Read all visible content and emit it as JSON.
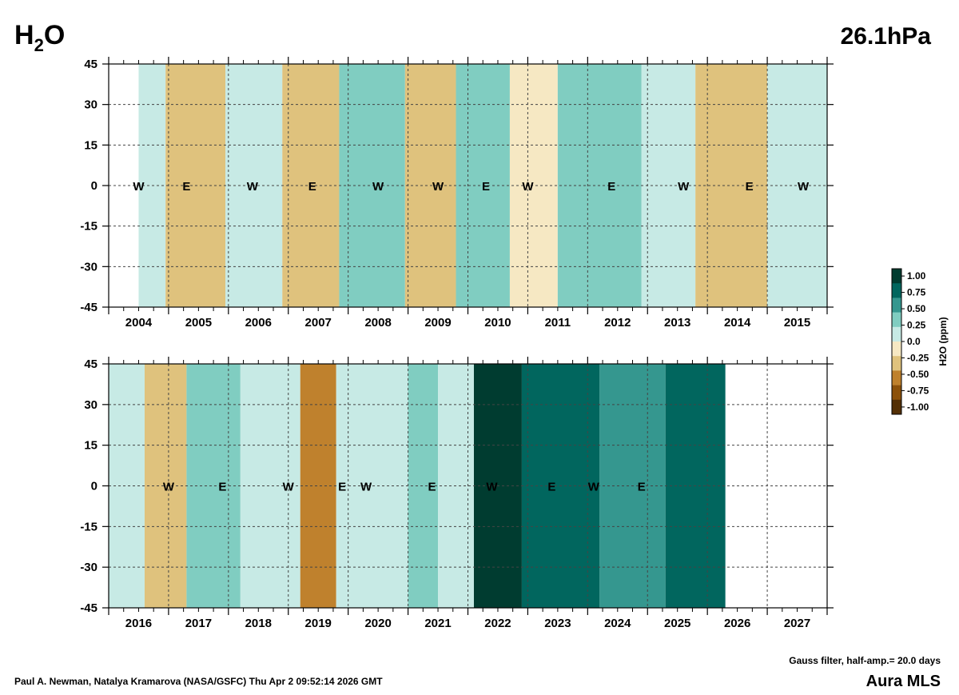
{
  "header": {
    "species": "H",
    "species_sub": "2",
    "species_tail": "O",
    "level": "26.1hPa"
  },
  "footer": {
    "credit": "Paul A. Newman, Natalya Kramarova (NASA/GSFC) Thu Apr  2 09:52:14 2026 GMT",
    "filter": "Gauss filter, half-amp.= 20.0 days",
    "instrument": "Aura MLS"
  },
  "colorbar": {
    "label": "H2O (ppm)",
    "ticks": [
      "1.00",
      "0.75",
      "0.50",
      "0.25",
      "0.0",
      "-0.25",
      "-0.50",
      "-0.75",
      "-1.00"
    ],
    "colors": [
      "#003c30",
      "#01665e",
      "#35978f",
      "#80cdc1",
      "#c7eae5",
      "#f6e8c3",
      "#dfc27d",
      "#bf812d",
      "#8c510a",
      "#543005"
    ]
  },
  "chart_data": [
    {
      "type": "heatmap",
      "title": "",
      "xlabel": "",
      "ylabel": "",
      "x_tick_labels": [
        "2004",
        "2005",
        "2006",
        "2007",
        "2008",
        "2009",
        "2010",
        "2011",
        "2012",
        "2013",
        "2014",
        "2015"
      ],
      "y_tick_labels": [
        "45",
        "30",
        "15",
        "0",
        "-15",
        "-30",
        "-45"
      ],
      "xlim": [
        2003.5,
        2015.5
      ],
      "ylim": [
        -45,
        45
      ],
      "grid": true,
      "qbo_markers": [
        {
          "year": 2004.0,
          "label": "W"
        },
        {
          "year": 2004.8,
          "label": "E"
        },
        {
          "year": 2005.9,
          "label": "W"
        },
        {
          "year": 2006.9,
          "label": "E"
        },
        {
          "year": 2008.0,
          "label": "W"
        },
        {
          "year": 2009.0,
          "label": "W"
        },
        {
          "year": 2009.8,
          "label": "E"
        },
        {
          "year": 2010.5,
          "label": "W"
        },
        {
          "year": 2011.9,
          "label": "E"
        },
        {
          "year": 2013.1,
          "label": "W"
        },
        {
          "year": 2014.2,
          "label": "E"
        },
        {
          "year": 2015.1,
          "label": "W"
        }
      ],
      "anomaly_bands": [
        {
          "start": 2004.0,
          "end": 2004.45,
          "value": 0.15
        },
        {
          "start": 2004.45,
          "end": 2005.45,
          "value": -0.3
        },
        {
          "start": 2005.45,
          "end": 2006.4,
          "value": 0.2
        },
        {
          "start": 2006.4,
          "end": 2007.35,
          "value": -0.3
        },
        {
          "start": 2007.35,
          "end": 2008.45,
          "value": 0.3
        },
        {
          "start": 2008.45,
          "end": 2009.3,
          "value": -0.2
        },
        {
          "start": 2009.3,
          "end": 2010.2,
          "value": 0.4
        },
        {
          "start": 2010.2,
          "end": 2011.0,
          "value": -0.1
        },
        {
          "start": 2011.0,
          "end": 2012.4,
          "value": 0.3
        },
        {
          "start": 2012.4,
          "end": 2013.3,
          "value": 0.1
        },
        {
          "start": 2013.3,
          "end": 2014.5,
          "value": -0.3
        },
        {
          "start": 2014.5,
          "end": 2015.5,
          "value": 0.15
        }
      ]
    },
    {
      "type": "heatmap",
      "title": "",
      "xlabel": "",
      "ylabel": "",
      "x_tick_labels": [
        "2016",
        "2017",
        "2018",
        "2019",
        "2020",
        "2021",
        "2022",
        "2023",
        "2024",
        "2025",
        "2026",
        "2027"
      ],
      "y_tick_labels": [
        "45",
        "30",
        "15",
        "0",
        "-15",
        "-30",
        "-45"
      ],
      "xlim": [
        2015.5,
        2027.5
      ],
      "ylim": [
        -45,
        45
      ],
      "grid": true,
      "qbo_markers": [
        {
          "year": 2016.5,
          "label": "W"
        },
        {
          "year": 2017.4,
          "label": "E"
        },
        {
          "year": 2018.5,
          "label": "W"
        },
        {
          "year": 2019.4,
          "label": "E"
        },
        {
          "year": 2019.8,
          "label": "W"
        },
        {
          "year": 2020.9,
          "label": "E"
        },
        {
          "year": 2021.9,
          "label": "W"
        },
        {
          "year": 2022.9,
          "label": "E"
        },
        {
          "year": 2023.6,
          "label": "W"
        },
        {
          "year": 2024.4,
          "label": "E"
        }
      ],
      "anomaly_bands": [
        {
          "start": 2015.5,
          "end": 2016.1,
          "value": 0.15
        },
        {
          "start": 2016.1,
          "end": 2016.8,
          "value": -0.2
        },
        {
          "start": 2016.8,
          "end": 2017.7,
          "value": 0.3
        },
        {
          "start": 2017.7,
          "end": 2018.7,
          "value": 0.1
        },
        {
          "start": 2018.7,
          "end": 2019.3,
          "value": -0.5
        },
        {
          "start": 2019.3,
          "end": 2020.5,
          "value": 0.15
        },
        {
          "start": 2020.5,
          "end": 2021.0,
          "value": 0.3
        },
        {
          "start": 2021.0,
          "end": 2021.6,
          "value": 0.1
        },
        {
          "start": 2021.6,
          "end": 2022.4,
          "value": 1.0
        },
        {
          "start": 2022.4,
          "end": 2023.7,
          "value": 0.75
        },
        {
          "start": 2023.7,
          "end": 2024.8,
          "value": 0.6
        },
        {
          "start": 2024.8,
          "end": 2025.8,
          "value": 0.7
        }
      ],
      "data_end": 2025.8
    }
  ]
}
